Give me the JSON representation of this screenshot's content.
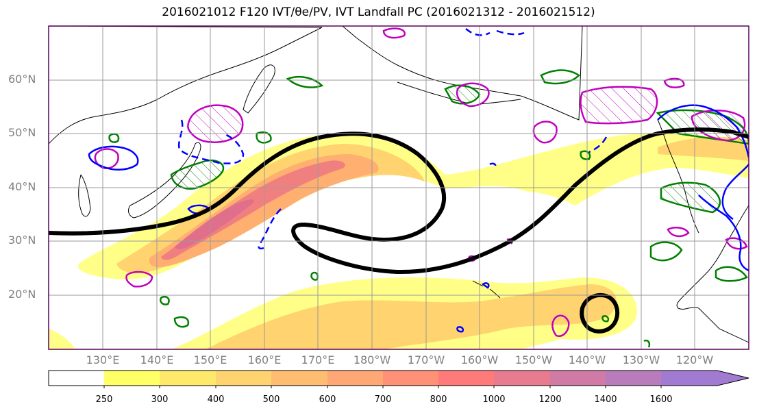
{
  "title": "2016021012 F120 IVT/θe/PV, IVT Landfall PC (2016021312 - 2016021512)",
  "latitude_labels": [
    "60°N",
    "50°N",
    "40°N",
    "30°N",
    "20°N"
  ],
  "longitude_labels": [
    "130°E",
    "140°E",
    "150°E",
    "160°E",
    "170°E",
    "180°W",
    "170°W",
    "160°W",
    "150°W",
    "140°W",
    "130°W",
    "120°W"
  ],
  "colorbar": {
    "levels": [
      "250",
      "300",
      "400",
      "500",
      "600",
      "700",
      "800",
      "1000",
      "1200",
      "1400",
      "1600"
    ],
    "colors": [
      "#ffffff",
      "#ffff66",
      "#ffe96b",
      "#ffd36f",
      "#ffbd72",
      "#ffa775",
      "#ff9177",
      "#ff7b79",
      "#e87b8f",
      "#d07ba5",
      "#b87bbb",
      "#a07bd1"
    ]
  },
  "contour_colors": {
    "ivt_fill_low": "#ffff88",
    "ivt_fill_mid": "#ffc875",
    "ivt_fill_high": "#f08080",
    "ivt_fill_core": "#e06f8c",
    "principal_component": "#000000",
    "theta_e": "#008000",
    "pv_positive": "#c000c0",
    "pv_negative": "#0000ff"
  }
}
